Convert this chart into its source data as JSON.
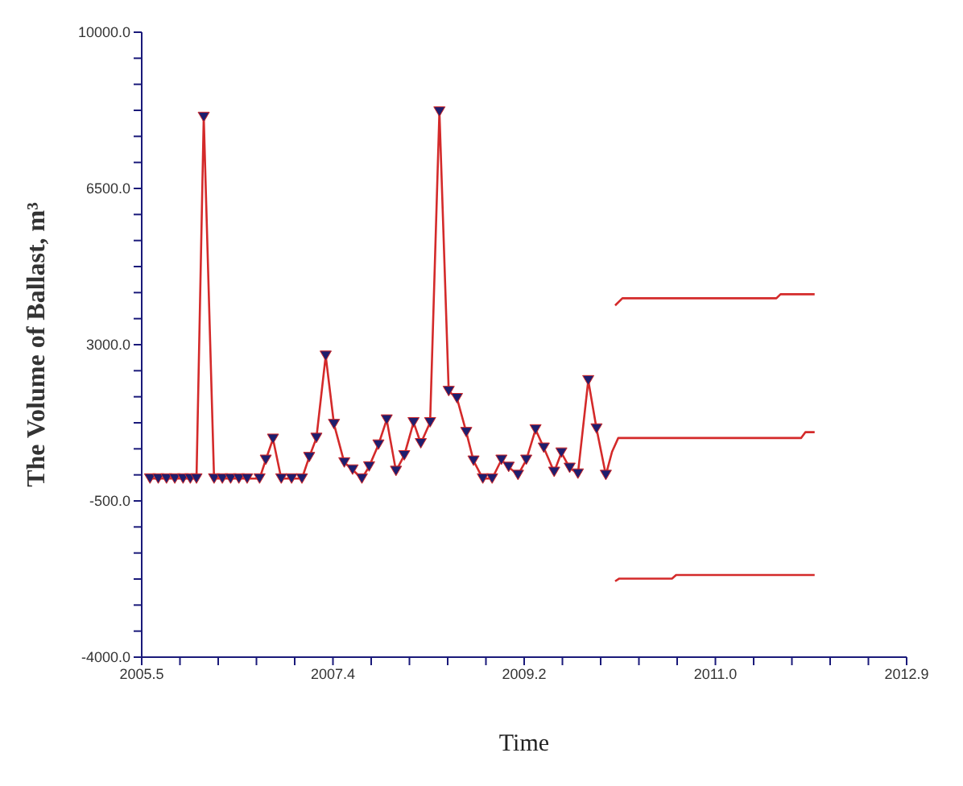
{
  "chart_data": {
    "type": "line",
    "xlabel": "Time",
    "ylabel": "The Volume of Ballast, m³",
    "xlim": [
      2005.5,
      2012.9
    ],
    "xticks": [
      {
        "value": 2005.5,
        "label": "2005.5"
      },
      {
        "value": 2005.87,
        "label": null
      },
      {
        "value": 2006.24,
        "label": null
      },
      {
        "value": 2006.61,
        "label": null
      },
      {
        "value": 2006.98,
        "label": null
      },
      {
        "value": 2007.35,
        "label": "2007.4"
      },
      {
        "value": 2007.72,
        "label": null
      },
      {
        "value": 2008.09,
        "label": null
      },
      {
        "value": 2008.46,
        "label": null
      },
      {
        "value": 2008.83,
        "label": null
      },
      {
        "value": 2009.2,
        "label": "2009.2"
      },
      {
        "value": 2009.57,
        "label": null
      },
      {
        "value": 2009.94,
        "label": null
      },
      {
        "value": 2010.31,
        "label": null
      },
      {
        "value": 2010.68,
        "label": null
      },
      {
        "value": 2011.05,
        "label": "2011.0"
      },
      {
        "value": 2011.42,
        "label": null
      },
      {
        "value": 2011.79,
        "label": null
      },
      {
        "value": 2012.16,
        "label": null
      },
      {
        "value": 2012.53,
        "label": null
      },
      {
        "value": 2012.9,
        "label": "2012.9"
      }
    ],
    "ylim": [
      -4000,
      10000
    ],
    "yticks": [
      {
        "value": -4000,
        "label": "-4000.0"
      },
      {
        "value": -3416.7,
        "label": null
      },
      {
        "value": -2833.3,
        "label": null
      },
      {
        "value": -2250,
        "label": null
      },
      {
        "value": -1666.7,
        "label": null
      },
      {
        "value": -1083.3,
        "label": null
      },
      {
        "value": -500,
        "label": "-500.0"
      },
      {
        "value": 83.3,
        "label": null
      },
      {
        "value": 666.7,
        "label": null
      },
      {
        "value": 1250,
        "label": null
      },
      {
        "value": 1833.3,
        "label": null
      },
      {
        "value": 2416.7,
        "label": null
      },
      {
        "value": 3000,
        "label": "3000.0"
      },
      {
        "value": 3583.3,
        "label": null
      },
      {
        "value": 4166.7,
        "label": null
      },
      {
        "value": 4750,
        "label": null
      },
      {
        "value": 5333.3,
        "label": null
      },
      {
        "value": 5916.7,
        "label": null
      },
      {
        "value": 6500,
        "label": "6500.0"
      },
      {
        "value": 7083.3,
        "label": null
      },
      {
        "value": 7666.7,
        "label": null
      },
      {
        "value": 8250,
        "label": null
      },
      {
        "value": 8833.3,
        "label": null
      },
      {
        "value": 9416.7,
        "label": null
      },
      {
        "value": 10000,
        "label": "10000.0"
      }
    ],
    "line_style": "solid",
    "series": [
      {
        "color": "#d42a2a",
        "marker": "triangle",
        "x": [
          2005.58,
          2005.66,
          2005.74,
          2005.82,
          2005.9,
          2005.97,
          2006.03,
          2006.1,
          2006.2,
          2006.28,
          2006.36,
          2006.44,
          2006.52,
          2006.64,
          2006.7,
          2006.77,
          2006.85,
          2006.95,
          2007.05,
          2007.12,
          2007.19,
          2007.28,
          2007.36,
          2007.46,
          2007.54,
          2007.63,
          2007.7,
          2007.79,
          2007.87,
          2007.96,
          2008.04,
          2008.13,
          2008.2,
          2008.29,
          2008.38,
          2008.47,
          2008.55,
          2008.64,
          2008.71,
          2008.8,
          2008.89,
          2008.98,
          2009.05,
          2009.14,
          2009.22,
          2009.31,
          2009.39,
          2009.49,
          2009.56,
          2009.64,
          2009.72,
          2009.82,
          2009.9,
          2009.99
        ],
        "values": [
          0,
          0,
          0,
          0,
          0,
          0,
          0,
          8100,
          0,
          0,
          0,
          0,
          0,
          0,
          420,
          890,
          0,
          0,
          0,
          480,
          910,
          2750,
          1220,
          360,
          200,
          0,
          270,
          760,
          1320,
          170,
          520,
          1260,
          790,
          1260,
          8220,
          1960,
          1800,
          1040,
          400,
          0,
          0,
          420,
          260,
          80,
          420,
          1100,
          690,
          150,
          580,
          240,
          110,
          2200,
          1120,
          80
        ]
      },
      {
        "color": "#d42a2a",
        "marker": "none",
        "x": [
          2009.99,
          2010.05,
          2010.11,
          2010.35,
          2011.88,
          2011.92,
          2012.01
        ],
        "values": [
          80,
          600,
          910,
          910,
          910,
          1040,
          1040
        ]
      },
      {
        "color": "#d42a2a",
        "marker": "none",
        "x": [
          2010.08,
          2010.15,
          2010.45,
          2011.64,
          2011.68,
          2012.01
        ],
        "values": [
          3880,
          4040,
          4040,
          4040,
          4130,
          4130
        ]
      },
      {
        "color": "#d42a2a",
        "marker": "none",
        "x": [
          2010.08,
          2010.12,
          2010.63,
          2010.67,
          2012.01
        ],
        "values": [
          -2300,
          -2240,
          -2240,
          -2160,
          -2160
        ]
      }
    ]
  }
}
